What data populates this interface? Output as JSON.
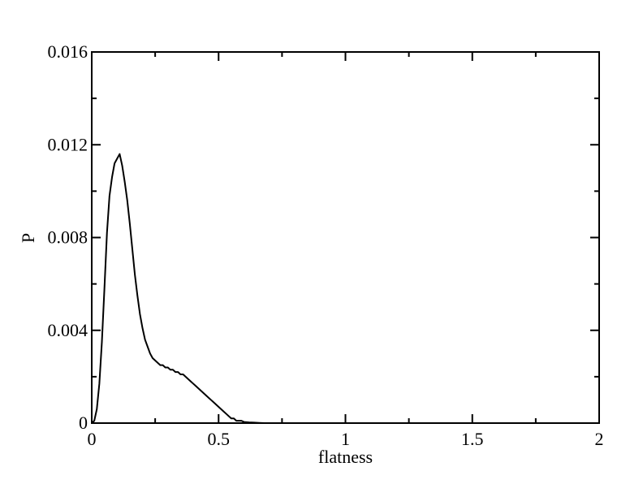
{
  "chart_data": {
    "type": "line",
    "title": "",
    "xlabel": "flatness",
    "ylabel": "P",
    "xlim": [
      0,
      2
    ],
    "ylim": [
      0,
      0.016
    ],
    "x_ticks": [
      0,
      0.5,
      1,
      1.5,
      2
    ],
    "x_tick_labels": [
      "0",
      "0.5",
      "1",
      "1.5",
      "2"
    ],
    "y_ticks": [
      0,
      0.004,
      0.008,
      0.012,
      0.016
    ],
    "y_tick_labels": [
      "0",
      "0.004",
      "0.008",
      "0.012",
      "0.016"
    ],
    "grid": false,
    "legend": "none",
    "line_color": "#000000",
    "series": [
      {
        "x": [
          0.0,
          0.01,
          0.02,
          0.03,
          0.04,
          0.05,
          0.06,
          0.07,
          0.08,
          0.09,
          0.1,
          0.11,
          0.12,
          0.13,
          0.14,
          0.15,
          0.16,
          0.17,
          0.18,
          0.19,
          0.2,
          0.21,
          0.22,
          0.23,
          0.24,
          0.25,
          0.26,
          0.27,
          0.28,
          0.29,
          0.3,
          0.31,
          0.32,
          0.33,
          0.34,
          0.35,
          0.36,
          0.37,
          0.38,
          0.39,
          0.4,
          0.41,
          0.42,
          0.43,
          0.44,
          0.45,
          0.46,
          0.47,
          0.48,
          0.49,
          0.5,
          0.51,
          0.52,
          0.53,
          0.54,
          0.55,
          0.56,
          0.57,
          0.58,
          0.59,
          0.6,
          0.62,
          0.64,
          0.66,
          0.68,
          0.7
        ],
        "values": [
          0.0,
          0.0001,
          0.0006,
          0.0017,
          0.0035,
          0.0058,
          0.0082,
          0.0098,
          0.0106,
          0.0112,
          0.0114,
          0.0116,
          0.0111,
          0.0104,
          0.0096,
          0.0086,
          0.0075,
          0.0064,
          0.0055,
          0.0047,
          0.0041,
          0.0036,
          0.0033,
          0.003,
          0.0028,
          0.0027,
          0.0026,
          0.0025,
          0.0025,
          0.0024,
          0.0024,
          0.0023,
          0.0023,
          0.0022,
          0.0022,
          0.0021,
          0.0021,
          0.002,
          0.0019,
          0.0018,
          0.0017,
          0.0016,
          0.0015,
          0.0014,
          0.0013,
          0.0012,
          0.0011,
          0.001,
          0.0009,
          0.0008,
          0.0007,
          0.0006,
          0.0005,
          0.0004,
          0.0003,
          0.0002,
          0.0002,
          0.0001,
          0.0001,
          0.0001,
          5e-05,
          3e-05,
          2e-05,
          1e-05,
          0.0,
          0.0
        ]
      }
    ]
  }
}
